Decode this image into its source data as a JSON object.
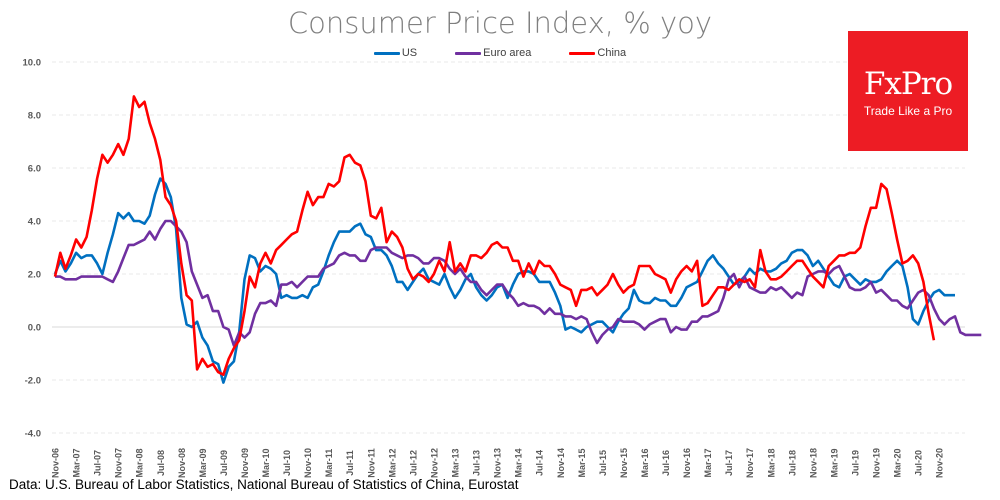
{
  "chart_data": {
    "type": "line",
    "title": "Consumer Price Index, % yoy",
    "xlabel": "",
    "ylabel": "",
    "ylim": [
      -4.0,
      10.0
    ],
    "yticks": [
      "10.0",
      "8.0",
      "6.0",
      "4.0",
      "2.0",
      "0.0",
      "-2.0",
      "-4.0"
    ],
    "ytick_values": [
      10,
      8,
      6,
      4,
      2,
      0,
      -2,
      -4
    ],
    "grid": true,
    "legend_position": "top-center",
    "x_start": "Nov-06",
    "x_end": "Nov-20",
    "x_frequency": "monthly",
    "xtick_labels": [
      "Nov-06",
      "Mar-07",
      "Jul-07",
      "Nov-07",
      "Mar-08",
      "Jul-08",
      "Nov-08",
      "Mar-09",
      "Jul-09",
      "Nov-09",
      "Mar-10",
      "Jul-10",
      "Nov-10",
      "Mar-11",
      "Jul-11",
      "Nov-11",
      "Mar-12",
      "Jul-12",
      "Nov-12",
      "Mar-13",
      "Jul-13",
      "Nov-13",
      "Mar-14",
      "Jul-14",
      "Nov-14",
      "Mar-15",
      "Jul-15",
      "Nov-15",
      "Mar-16",
      "Jul-16",
      "Nov-16",
      "Mar-17",
      "Jul-17",
      "Nov-17",
      "Mar-18",
      "Jul-18",
      "Nov-18",
      "Mar-19",
      "Jul-19",
      "Nov-19",
      "Mar-20",
      "Jul-20",
      "Nov-20"
    ],
    "series": [
      {
        "name": "US",
        "color": "#0070c0",
        "values": [
          2.0,
          2.5,
          2.1,
          2.4,
          2.8,
          2.6,
          2.7,
          2.7,
          2.4,
          2.0,
          2.8,
          3.5,
          4.3,
          4.1,
          4.3,
          4.0,
          4.0,
          3.9,
          4.2,
          5.0,
          5.6,
          5.4,
          4.9,
          3.7,
          1.1,
          0.1,
          0.0,
          0.2,
          -0.4,
          -0.7,
          -1.3,
          -1.4,
          -2.1,
          -1.5,
          -1.3,
          -0.2,
          1.8,
          2.7,
          2.6,
          2.1,
          2.3,
          2.2,
          2.0,
          1.1,
          1.2,
          1.1,
          1.1,
          1.2,
          1.1,
          1.5,
          1.6,
          2.1,
          2.7,
          3.2,
          3.6,
          3.6,
          3.6,
          3.8,
          3.9,
          3.5,
          3.4,
          2.9,
          2.9,
          2.7,
          2.3,
          1.7,
          1.7,
          1.4,
          1.7,
          2.0,
          2.2,
          1.8,
          1.7,
          1.6,
          2.0,
          1.5,
          1.1,
          1.4,
          1.8,
          2.0,
          1.5,
          1.2,
          1.0,
          1.2,
          1.5,
          1.6,
          1.1,
          1.6,
          2.0,
          2.1,
          2.1,
          2.0,
          1.7,
          1.7,
          1.7,
          1.3,
          0.8,
          -0.1,
          0.0,
          -0.1,
          -0.2,
          0.0,
          0.1,
          0.2,
          0.2,
          0.0,
          -0.2,
          0.2,
          0.5,
          0.7,
          1.4,
          1.0,
          0.9,
          0.9,
          1.1,
          1.0,
          1.0,
          0.8,
          0.8,
          1.1,
          1.5,
          1.6,
          1.7,
          2.1,
          2.5,
          2.7,
          2.4,
          2.2,
          1.9,
          1.6,
          1.7,
          1.9,
          2.2,
          2.0,
          2.2,
          2.1,
          2.1,
          2.2,
          2.4,
          2.5,
          2.8,
          2.9,
          2.9,
          2.7,
          2.3,
          2.5,
          2.2,
          1.9,
          1.6,
          1.5,
          1.9,
          2.0,
          1.8,
          1.6,
          1.8,
          1.7,
          1.7,
          1.8,
          2.1,
          2.3,
          2.5,
          2.3,
          1.5,
          0.3,
          0.1,
          0.6,
          1.0,
          1.3,
          1.4,
          1.2,
          1.2,
          1.2
        ]
      },
      {
        "name": "Euro area",
        "color": "#7030a0",
        "values": [
          1.9,
          1.9,
          1.8,
          1.8,
          1.8,
          1.9,
          1.9,
          1.9,
          1.9,
          1.9,
          1.8,
          1.7,
          2.1,
          2.6,
          3.1,
          3.1,
          3.2,
          3.3,
          3.6,
          3.3,
          3.7,
          4.0,
          4.0,
          3.8,
          3.6,
          3.2,
          2.1,
          1.6,
          1.1,
          1.2,
          0.6,
          0.6,
          0.0,
          -0.1,
          -0.7,
          -0.2,
          -0.4,
          -0.2,
          0.5,
          0.9,
          0.9,
          1.0,
          0.8,
          1.6,
          1.6,
          1.7,
          1.5,
          1.7,
          1.9,
          1.9,
          1.9,
          2.2,
          2.3,
          2.4,
          2.7,
          2.8,
          2.7,
          2.7,
          2.5,
          2.5,
          2.9,
          3.0,
          3.0,
          3.0,
          2.8,
          2.7,
          2.6,
          2.7,
          2.7,
          2.6,
          2.4,
          2.4,
          2.6,
          2.6,
          2.5,
          2.2,
          2.0,
          2.2,
          1.9,
          1.7,
          1.7,
          1.4,
          1.2,
          1.4,
          1.6,
          1.6,
          1.3,
          1.1,
          0.8,
          0.9,
          0.8,
          0.8,
          0.7,
          0.5,
          0.7,
          0.5,
          0.5,
          0.4,
          0.4,
          0.3,
          0.4,
          0.3,
          -0.2,
          -0.6,
          -0.3,
          -0.1,
          0.0,
          0.3,
          0.2,
          0.2,
          0.2,
          0.1,
          -0.1,
          0.1,
          0.2,
          0.3,
          0.3,
          -0.2,
          0.0,
          -0.1,
          -0.1,
          0.2,
          0.2,
          0.4,
          0.4,
          0.5,
          0.6,
          1.1,
          1.8,
          2.0,
          1.5,
          1.9,
          1.5,
          1.4,
          1.3,
          1.3,
          1.5,
          1.4,
          1.5,
          1.3,
          1.1,
          1.3,
          1.2,
          1.9,
          2.0,
          2.1,
          2.1,
          2.0,
          2.2,
          2.3,
          1.9,
          1.5,
          1.4,
          1.4,
          1.5,
          1.7,
          1.3,
          1.4,
          1.2,
          1.0,
          1.0,
          0.8,
          0.7,
          1.0,
          1.3,
          1.4,
          1.2,
          0.7,
          0.3,
          0.1,
          0.3,
          0.4,
          -0.2,
          -0.3,
          -0.3,
          -0.3,
          -0.3
        ]
      },
      {
        "name": "China",
        "color": "#ff0000",
        "values": [
          1.9,
          2.8,
          2.2,
          2.7,
          3.3,
          3.0,
          3.4,
          4.4,
          5.6,
          6.5,
          6.2,
          6.5,
          6.9,
          6.5,
          7.1,
          8.7,
          8.3,
          8.5,
          7.7,
          7.1,
          6.3,
          4.9,
          4.6,
          4.0,
          2.4,
          1.2,
          1.0,
          -1.6,
          -1.2,
          -1.5,
          -1.4,
          -1.7,
          -1.8,
          -1.2,
          -0.8,
          -0.5,
          0.6,
          1.9,
          1.5,
          2.4,
          2.8,
          2.4,
          2.9,
          3.1,
          3.3,
          3.5,
          3.6,
          4.4,
          5.1,
          4.6,
          4.9,
          4.9,
          5.4,
          5.3,
          5.5,
          6.4,
          6.5,
          6.2,
          6.1,
          5.5,
          4.2,
          4.1,
          4.5,
          3.2,
          3.6,
          3.4,
          3.0,
          2.2,
          1.8,
          2.0,
          1.9,
          1.7,
          2.0,
          2.5,
          2.1,
          3.2,
          2.1,
          2.4,
          2.1,
          2.7,
          2.7,
          2.6,
          2.8,
          3.1,
          3.2,
          3.0,
          3.0,
          2.5,
          2.5,
          1.9,
          2.4,
          2.0,
          2.5,
          2.3,
          2.3,
          2.0,
          1.6,
          1.5,
          1.4,
          0.8,
          1.4,
          1.4,
          1.5,
          1.2,
          1.4,
          1.6,
          2.0,
          1.6,
          1.3,
          1.5,
          1.6,
          2.3,
          2.3,
          2.3,
          2.0,
          1.9,
          1.8,
          1.3,
          1.8,
          2.1,
          2.3,
          2.1,
          2.5,
          0.8,
          0.9,
          1.2,
          1.5,
          1.5,
          1.4,
          1.6,
          1.8,
          1.7,
          1.8,
          1.5,
          2.9,
          2.1,
          1.8,
          1.8,
          1.9,
          2.1,
          2.3,
          2.5,
          2.5,
          2.2,
          1.9,
          1.7,
          1.5,
          2.3,
          2.5,
          2.7,
          2.7,
          2.8,
          2.8,
          3.0,
          3.8,
          4.5,
          4.5,
          5.4,
          5.2,
          4.3,
          3.3,
          2.4,
          2.5,
          2.7,
          2.4,
          1.7,
          0.5,
          -0.5
        ]
      }
    ]
  },
  "logo": {
    "name": "FxPro",
    "tagline": "Trade Like a Pro",
    "bg_color": "#ed1c24"
  },
  "source": "Data: U.S. Bureau of Labor Statistics, National Bureau of Statistics of China, Eurostat"
}
